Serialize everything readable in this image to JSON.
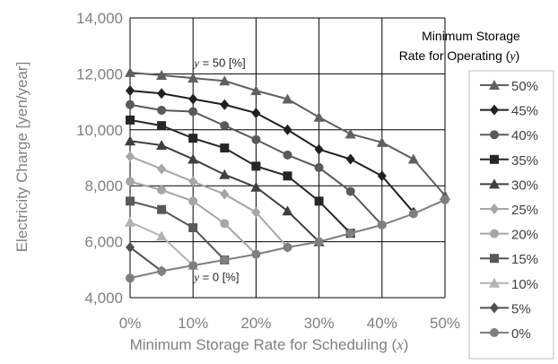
{
  "chart_data": {
    "type": "line",
    "title": "",
    "xlabel": "Minimum Storage Rate for Scheduling (x)",
    "ylabel": "Electricity Charge [yen/year]",
    "xlim": [
      0,
      50
    ],
    "ylim": [
      4000,
      14000
    ],
    "x_ticks": [
      0,
      10,
      20,
      30,
      40,
      50
    ],
    "x_tick_labels": [
      "0%",
      "10%",
      "20%",
      "30%",
      "40%",
      "50%"
    ],
    "y_ticks": [
      4000,
      6000,
      8000,
      10000,
      12000,
      14000
    ],
    "y_tick_labels": [
      "4,000",
      "6,000",
      "8,000",
      "10,000",
      "12,000",
      "14,000"
    ],
    "grid": true,
    "legend_title": [
      "Minimum Storage",
      "Rate for Operating (y)"
    ],
    "legend_position": "right",
    "annotations": [
      {
        "text": "y = 50 [%]",
        "x": 13,
        "y": 12250
      },
      {
        "text": "y = 0 [%]",
        "x": 13,
        "y": 4600
      }
    ],
    "series": [
      {
        "name": "50%",
        "color": "#606060",
        "marker": "triangle",
        "x": [
          0,
          5,
          10,
          15,
          20,
          25,
          30,
          35,
          40,
          45,
          50
        ],
        "values": [
          12050,
          11950,
          11850,
          11750,
          11400,
          11100,
          10450,
          9850,
          9550,
          8950,
          7650
        ]
      },
      {
        "name": "45%",
        "color": "#202020",
        "marker": "diamond",
        "x": [
          0,
          5,
          10,
          15,
          20,
          25,
          30,
          35,
          40,
          45
        ],
        "values": [
          11400,
          11300,
          11100,
          10900,
          10600,
          10000,
          9300,
          8950,
          8350,
          7050
        ]
      },
      {
        "name": "40%",
        "color": "#595959",
        "marker": "circle",
        "x": [
          0,
          5,
          10,
          15,
          20,
          25,
          30,
          35,
          40
        ],
        "values": [
          10900,
          10700,
          10650,
          10150,
          9650,
          9100,
          8650,
          7800,
          6600
        ]
      },
      {
        "name": "35%",
        "color": "#262626",
        "marker": "square",
        "x": [
          0,
          5,
          10,
          15,
          20,
          25,
          30,
          35
        ],
        "values": [
          10350,
          10150,
          9700,
          9350,
          8700,
          8350,
          7450,
          6300
        ]
      },
      {
        "name": "30%",
        "color": "#404040",
        "marker": "triangle",
        "x": [
          0,
          5,
          10,
          15,
          20,
          25,
          30
        ],
        "values": [
          9600,
          9450,
          8950,
          8400,
          7950,
          7100,
          6000
        ]
      },
      {
        "name": "25%",
        "color": "#a6a6a6",
        "marker": "diamond",
        "x": [
          0,
          5,
          10,
          15,
          20,
          25
        ],
        "values": [
          9050,
          8600,
          8150,
          7700,
          7050,
          5800
        ]
      },
      {
        "name": "20%",
        "color": "#a6a6a6",
        "marker": "circle",
        "x": [
          0,
          5,
          10,
          15,
          20
        ],
        "values": [
          8150,
          7850,
          7450,
          6650,
          5550
        ]
      },
      {
        "name": "15%",
        "color": "#595959",
        "marker": "square",
        "x": [
          0,
          5,
          10,
          15
        ],
        "values": [
          7450,
          7150,
          6500,
          5350
        ]
      },
      {
        "name": "10%",
        "color": "#b3b3b3",
        "marker": "triangle",
        "x": [
          0,
          5,
          10
        ],
        "values": [
          6700,
          6200,
          5150
        ]
      },
      {
        "name": "5%",
        "color": "#505050",
        "marker": "diamond",
        "x": [
          0,
          5
        ],
        "values": [
          5800,
          4950
        ]
      },
      {
        "name": "0%",
        "color": "#7f7f7f",
        "marker": "circle",
        "x": [
          0,
          5,
          10,
          15,
          20,
          25,
          30,
          35,
          40,
          45,
          50
        ],
        "values": [
          4700,
          4950,
          5150,
          5350,
          5550,
          5800,
          6000,
          6300,
          6600,
          7000,
          7500
        ]
      }
    ]
  }
}
